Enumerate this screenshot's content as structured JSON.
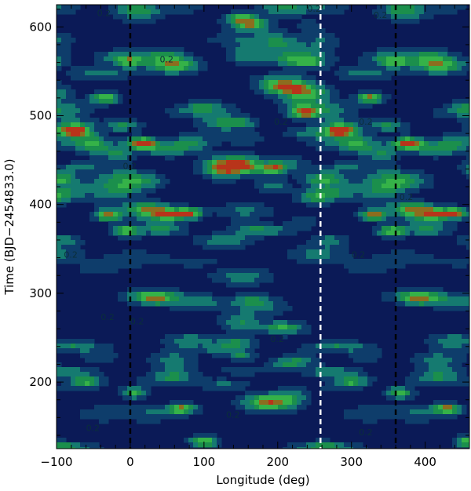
{
  "chart_data": {
    "type": "heatmap",
    "subtype": "filled-contour",
    "xlabel": "Longitude (deg)",
    "ylabel": "Time (BJD−2454833.0)",
    "xlim": [
      -100,
      460
    ],
    "ylim": [
      125,
      625
    ],
    "x_ticks": [
      -100,
      0,
      100,
      200,
      300,
      400
    ],
    "x_tick_labels": [
      "−100",
      "0",
      "100",
      "200",
      "300",
      "400"
    ],
    "y_ticks": [
      200,
      300,
      400,
      500,
      600
    ],
    "y_tick_labels": [
      "200",
      "300",
      "400",
      "500",
      "600"
    ],
    "contour_label": "0.2",
    "levels": [
      0.1,
      0.2,
      0.3,
      0.4,
      0.5
    ],
    "level_colors": [
      "#0b1a57",
      "#0e3d6b",
      "#157a70",
      "#1b8f4c",
      "#35b248",
      "#8c6d1f",
      "#b8341a"
    ],
    "reference_lines": [
      {
        "x": 0,
        "style": "dashed",
        "color": "#000000"
      },
      {
        "x": 360,
        "style": "dashed",
        "color": "#000000"
      },
      {
        "x": 258,
        "style": "dashed",
        "color": "#ffffff"
      }
    ],
    "periodic_longitude": 360,
    "spots": [
      {
        "longitude": -75,
        "time": 483,
        "intensity": 0.55
      },
      {
        "longitude": -35,
        "time": 520,
        "intensity": 0.5
      },
      {
        "longitude": 15,
        "time": 470,
        "intensity": 0.45
      },
      {
        "longitude": -30,
        "time": 388,
        "intensity": 0.55
      },
      {
        "longitude": -5,
        "time": 370,
        "intensity": 0.5
      },
      {
        "longitude": 50,
        "time": 388,
        "intensity": 0.45
      },
      {
        "longitude": 80,
        "time": 390,
        "intensity": 0.55
      },
      {
        "longitude": 195,
        "time": 440,
        "intensity": 0.5
      },
      {
        "longitude": 235,
        "time": 503,
        "intensity": 0.5
      },
      {
        "longitude": 70,
        "time": 170,
        "intensity": 0.5
      },
      {
        "longitude": 100,
        "time": 133,
        "intensity": 0.5
      },
      {
        "longitude": 5,
        "time": 188,
        "intensity": 0.4
      },
      {
        "longitude": -60,
        "time": 200,
        "intensity": 0.3
      },
      {
        "longitude": 150,
        "time": 610,
        "intensity": 0.35
      },
      {
        "longitude": 0,
        "time": 560,
        "intensity": 0.3
      },
      {
        "longitude": 150,
        "time": 230,
        "intensity": 0.25
      }
    ]
  }
}
